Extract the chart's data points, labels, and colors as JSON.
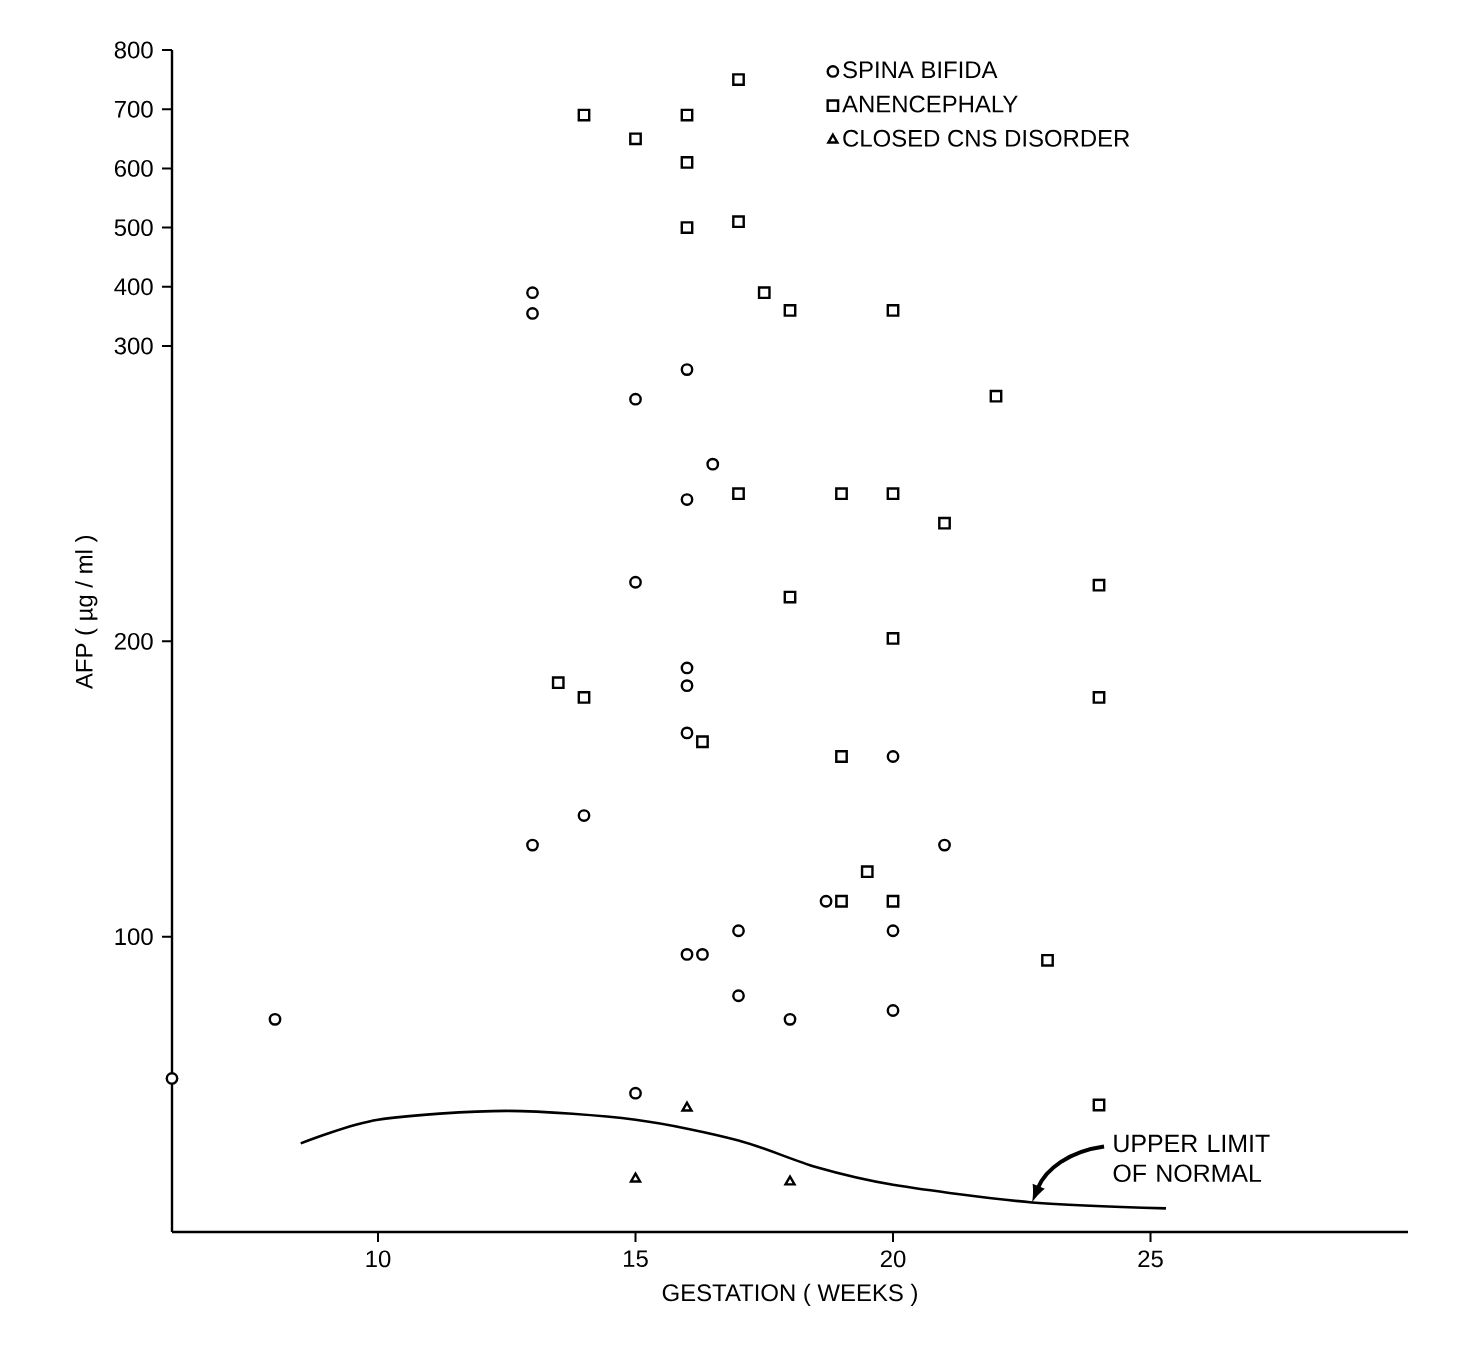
{
  "chart_data": [
    {
      "type": "scatter",
      "xlim": [
        6,
        25
      ],
      "xticks": [
        10,
        15,
        20,
        25
      ],
      "ylim": [
        300,
        800
      ],
      "yticks": [
        400,
        500,
        600,
        700,
        800
      ],
      "tick_labels": "y",
      "legend": "top right",
      "series": [
        {
          "name": "SPINA BIFIDA",
          "color": "#000000",
          "marker": "circle",
          "x": [
            13,
            13
          ],
          "values": [
            390,
            355
          ]
        },
        {
          "name": "ANENCEPHALY",
          "color": "#000000",
          "marker": "square",
          "x": [
            14,
            15,
            16,
            16,
            16,
            17,
            17,
            17.5,
            18,
            20
          ],
          "values": [
            690,
            650,
            690,
            610,
            500,
            750,
            510,
            390,
            360,
            360
          ]
        },
        {
          "name": "CLOSED CNS DISORDER",
          "color": "#000000",
          "marker": "triangle"
        }
      ]
    },
    {
      "type": "scatter",
      "xlim": [
        6,
        30
      ],
      "xticks": [
        10,
        15,
        20,
        25
      ],
      "ylim": [
        0,
        300
      ],
      "yticks": [
        100,
        200,
        300
      ],
      "xlabel": "GESTATION ( WEEKS )",
      "ylabel": "AFP ( µg / ml )",
      "annotations": [
        {
          "text": "UPPER LIMIT OF NORMAL",
          "x": 22.7,
          "y": 10
        }
      ],
      "series": [
        {
          "color": "#000000",
          "marker": "circle",
          "x": [
            16,
            15,
            16.5,
            16,
            15,
            16,
            16,
            16,
            14,
            13,
            21,
            20,
            18.7,
            17,
            20,
            16,
            16.3,
            17,
            18,
            20,
            8,
            6,
            15
          ],
          "values": [
            292,
            282,
            260,
            248,
            220,
            191,
            185,
            169,
            141,
            131,
            131,
            161,
            112,
            102,
            102,
            94,
            94,
            80,
            72,
            75,
            72,
            52,
            47
          ]
        },
        {
          "color": "#000000",
          "marker": "square",
          "x": [
            22,
            17,
            19,
            20,
            21,
            24,
            18,
            20,
            13.5,
            14,
            16.3,
            24,
            19,
            19.5,
            19,
            20,
            23,
            24
          ],
          "values": [
            283,
            250,
            250,
            250,
            240,
            219,
            215,
            201,
            186,
            181,
            166,
            181,
            161,
            122,
            112,
            112,
            92,
            43
          ]
        },
        {
          "color": "#000000",
          "marker": "triangle",
          "x": [
            16,
            15,
            18
          ],
          "values": [
            42,
            18,
            17
          ]
        },
        {
          "type": "line",
          "color": "#000000",
          "marker": "none",
          "x": [
            8.5,
            10,
            12.5,
            15,
            17,
            18.5,
            20,
            22.7,
            25.3
          ],
          "values": [
            30,
            38,
            41,
            38,
            31,
            22,
            16,
            10,
            8
          ]
        }
      ]
    }
  ]
}
